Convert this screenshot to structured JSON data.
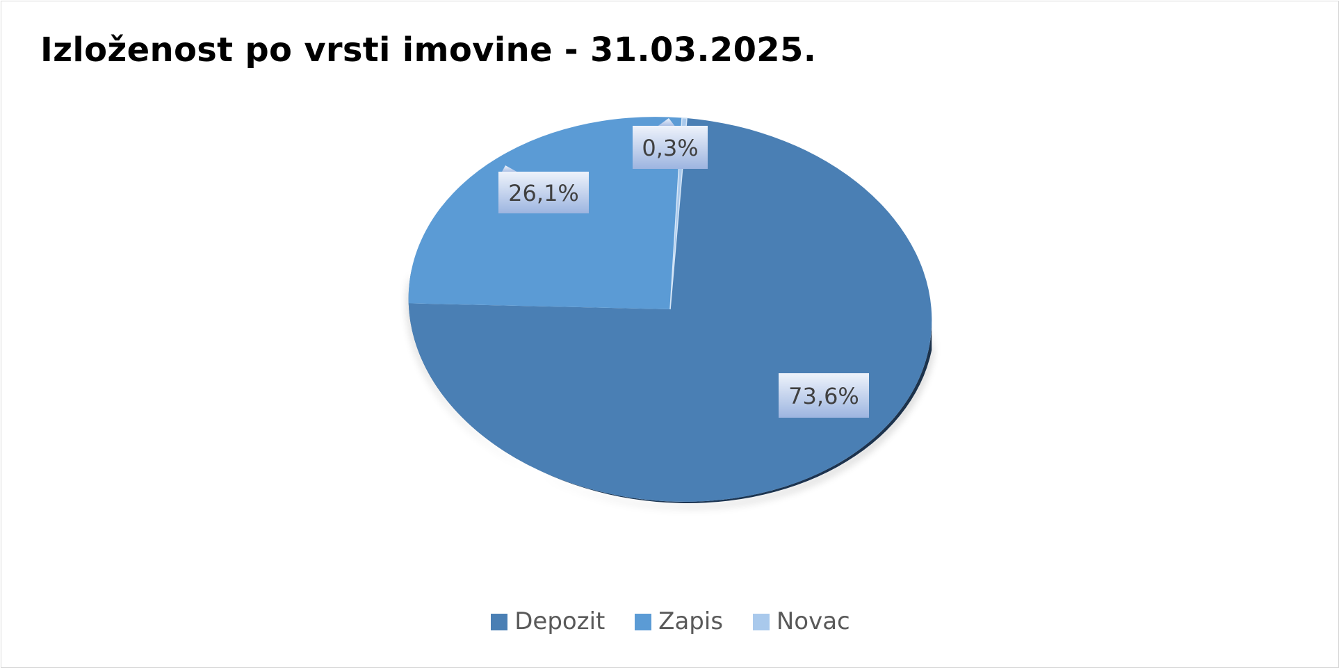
{
  "chart_data": {
    "type": "pie",
    "title": "Izloženost po vrsti imovine - 31.03.2025.",
    "categories": [
      "Depozit",
      "Zapis",
      "Novac"
    ],
    "values": [
      73.6,
      26.1,
      0.3
    ],
    "value_labels": [
      "73,6%",
      "26,1%",
      "0,3%"
    ],
    "colors": [
      "#4a7fb4",
      "#5b9bd5",
      "#a9c9ec"
    ],
    "style": "3d-pie",
    "legend_position": "bottom"
  }
}
